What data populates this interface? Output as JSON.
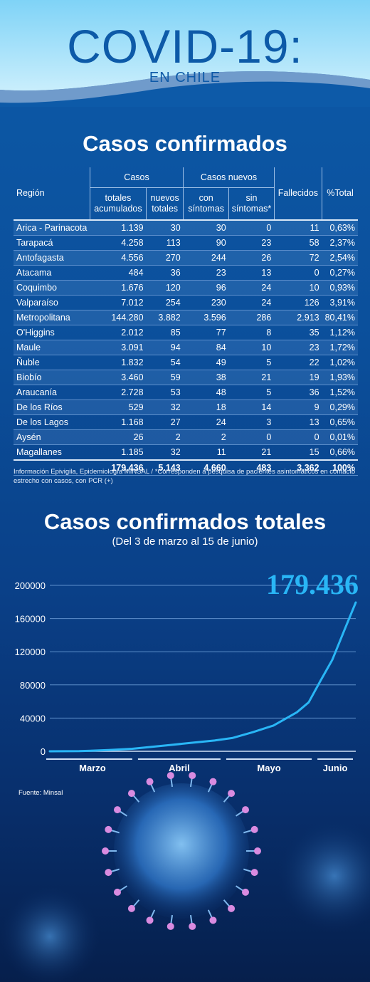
{
  "header": {
    "title": "COVID-19:",
    "subtitle": "EN CHILE"
  },
  "table_section": {
    "title": "Casos confirmados"
  },
  "table": {
    "group_headers": {
      "casos": "Casos",
      "casos_nuevos": "Casos nuevos"
    },
    "headers": {
      "region": "Región",
      "totales_acumulados": "totales acumulados",
      "nuevos_totales": "nuevos totales",
      "con_sintomas": "con síntomas",
      "sin_sintomas": "sin síntomas*",
      "fallecidos": "Fallecidos",
      "pct_total": "%Total"
    },
    "rows": [
      {
        "region": "Arica - Parinacota",
        "totales": "1.139",
        "nuevos": "30",
        "con": "30",
        "sin": "0",
        "fallecidos": "11",
        "pct": "0,63%"
      },
      {
        "region": "Tarapacá",
        "totales": "4.258",
        "nuevos": "113",
        "con": "90",
        "sin": "23",
        "fallecidos": "58",
        "pct": "2,37%"
      },
      {
        "region": "Antofagasta",
        "totales": "4.556",
        "nuevos": "270",
        "con": "244",
        "sin": "26",
        "fallecidos": "72",
        "pct": "2,54%"
      },
      {
        "region": "Atacama",
        "totales": "484",
        "nuevos": "36",
        "con": "23",
        "sin": "13",
        "fallecidos": "0",
        "pct": "0,27%"
      },
      {
        "region": "Coquimbo",
        "totales": "1.676",
        "nuevos": "120",
        "con": "96",
        "sin": "24",
        "fallecidos": "10",
        "pct": "0,93%"
      },
      {
        "region": "Valparaíso",
        "totales": "7.012",
        "nuevos": "254",
        "con": "230",
        "sin": "24",
        "fallecidos": "126",
        "pct": "3,91%"
      },
      {
        "region": "Metropolitana",
        "totales": "144.280",
        "nuevos": "3.882",
        "con": "3.596",
        "sin": "286",
        "fallecidos": "2.913",
        "pct": "80,41%"
      },
      {
        "region": "O'Higgins",
        "totales": "2.012",
        "nuevos": "85",
        "con": "77",
        "sin": "8",
        "fallecidos": "35",
        "pct": "1,12%"
      },
      {
        "region": "Maule",
        "totales": "3.091",
        "nuevos": "94",
        "con": "84",
        "sin": "10",
        "fallecidos": "23",
        "pct": "1,72%"
      },
      {
        "region": "Ñuble",
        "totales": "1.832",
        "nuevos": "54",
        "con": "49",
        "sin": "5",
        "fallecidos": "22",
        "pct": "1,02%"
      },
      {
        "region": "Biobío",
        "totales": "3.460",
        "nuevos": "59",
        "con": "38",
        "sin": "21",
        "fallecidos": "19",
        "pct": "1,93%"
      },
      {
        "region": "Araucanía",
        "totales": "2.728",
        "nuevos": "53",
        "con": "48",
        "sin": "5",
        "fallecidos": "36",
        "pct": "1,52%"
      },
      {
        "region": "De los Ríos",
        "totales": "529",
        "nuevos": "32",
        "con": "18",
        "sin": "14",
        "fallecidos": "9",
        "pct": "0,29%"
      },
      {
        "region": "De los Lagos",
        "totales": "1.168",
        "nuevos": "27",
        "con": "24",
        "sin": "3",
        "fallecidos": "13",
        "pct": "0,65%"
      },
      {
        "region": "Aysén",
        "totales": "26",
        "nuevos": "2",
        "con": "2",
        "sin": "0",
        "fallecidos": "0",
        "pct": "0,01%"
      },
      {
        "region": "Magallanes",
        "totales": "1.185",
        "nuevos": "32",
        "con": "11",
        "sin": "21",
        "fallecidos": "15",
        "pct": "0,66%"
      }
    ],
    "totals": {
      "totales": "179.436",
      "nuevos": "5.143",
      "con": "4.660",
      "sin": "483",
      "fallecidos": "3.362",
      "pct": "100%"
    }
  },
  "table_note": "Información Epivigila, Epidemiología MINSAL / *Corresponden a pesquisa de pacientes asintomáticos en contacto estrecho con casos, con PCR (+)",
  "chart_section": {
    "title": "Casos confirmados totales",
    "subtitle": "(Del 3 de marzo al 15 de junio)"
  },
  "chart_data": {
    "type": "line",
    "title": "Casos confirmados totales",
    "subtitle": "(Del 3 de marzo al 15 de junio)",
    "xlabel": "",
    "ylabel": "",
    "ylim": [
      0,
      200000
    ],
    "yticks": [
      0,
      40000,
      80000,
      120000,
      160000,
      200000
    ],
    "ytick_labels": [
      "0",
      "40000",
      "80000",
      "120000",
      "160000",
      "200000"
    ],
    "x_categories": [
      {
        "label": "Marzo",
        "start": 0,
        "end": 29
      },
      {
        "label": "Abril",
        "start": 29,
        "end": 59
      },
      {
        "label": "Mayo",
        "start": 59,
        "end": 90
      },
      {
        "label": "Junio",
        "start": 90,
        "end": 104
      }
    ],
    "grid": true,
    "annotation": "179.436",
    "line_color": "#29b6f6",
    "series": [
      {
        "x": [
          0,
          10,
          20,
          28,
          35,
          42,
          49,
          56,
          62,
          69,
          76,
          80,
          84,
          88,
          92,
          96,
          100,
          104
        ],
        "y": [
          1,
          200,
          1500,
          3000,
          5500,
          8000,
          10500,
          13000,
          16000,
          23000,
          31000,
          39000,
          47000,
          59000,
          85000,
          110000,
          145000,
          179436
        ]
      }
    ]
  },
  "source": "Fuente: Minsal"
}
